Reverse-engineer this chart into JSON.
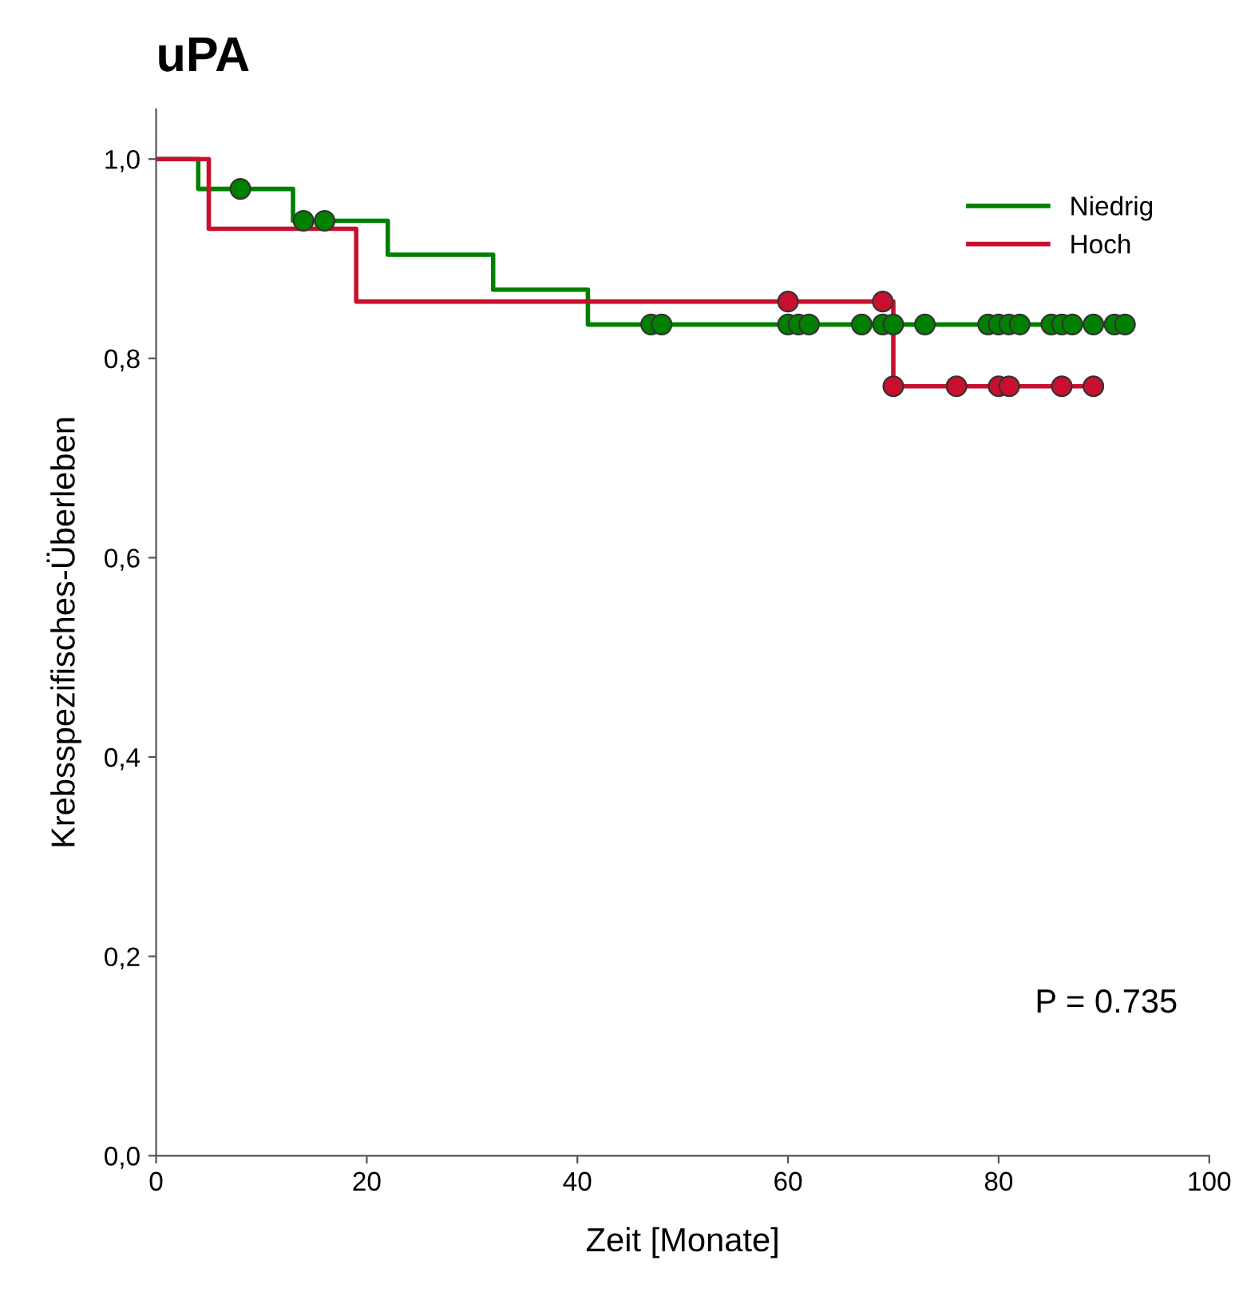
{
  "chart_data": {
    "type": "step",
    "title": "uPA",
    "xlabel": "Zeit [Monate]",
    "ylabel": "Krebsspezifisches-Überleben",
    "xlim": [
      0,
      100
    ],
    "xticks": [
      0,
      20,
      40,
      60,
      80,
      100
    ],
    "ylim": [
      0,
      1.05
    ],
    "yticks": [
      {
        "value": 0,
        "label": "0,0"
      },
      {
        "value": 0.2,
        "label": "0,2"
      },
      {
        "value": 0.4,
        "label": "0,4"
      },
      {
        "value": 0.6,
        "label": "0,6"
      },
      {
        "value": 0.8,
        "label": "0,8"
      },
      {
        "value": 1.0,
        "label": "1,0"
      }
    ],
    "grid": false,
    "legend": "top right",
    "line_style": "solid",
    "annotations": [
      "P = 0.735"
    ],
    "series": [
      {
        "name": "Niedrig",
        "color": "#008000",
        "x": [
          0,
          4,
          13,
          22,
          32,
          41,
          92
        ],
        "values": [
          1.0,
          0.97,
          0.938,
          0.904,
          0.869,
          0.834,
          0.834
        ]
      },
      {
        "name": "Hoch",
        "color": "#c8102e",
        "x": [
          0,
          5,
          19,
          70,
          89
        ],
        "values": [
          1.0,
          0.93,
          0.857,
          0.772,
          0.772
        ]
      },
      {
        "type": "scatter",
        "marker": "circle",
        "color": "#008000",
        "x": [
          8,
          14,
          16,
          47,
          48,
          60,
          61,
          62,
          67,
          69,
          70,
          73,
          79,
          80,
          81,
          82,
          85,
          86,
          87,
          89,
          91,
          92
        ],
        "values": [
          0.97,
          0.938,
          0.938,
          0.834,
          0.834,
          0.834,
          0.834,
          0.834,
          0.834,
          0.834,
          0.834,
          0.834,
          0.834,
          0.834,
          0.834,
          0.834,
          0.834,
          0.834,
          0.834,
          0.834,
          0.834,
          0.834
        ]
      },
      {
        "type": "scatter",
        "marker": "circle",
        "color": "#c8102e",
        "x": [
          60,
          69,
          70,
          76,
          80,
          81,
          86,
          89
        ],
        "values": [
          0.857,
          0.857,
          0.772,
          0.772,
          0.772,
          0.772,
          0.772,
          0.772
        ]
      }
    ]
  }
}
